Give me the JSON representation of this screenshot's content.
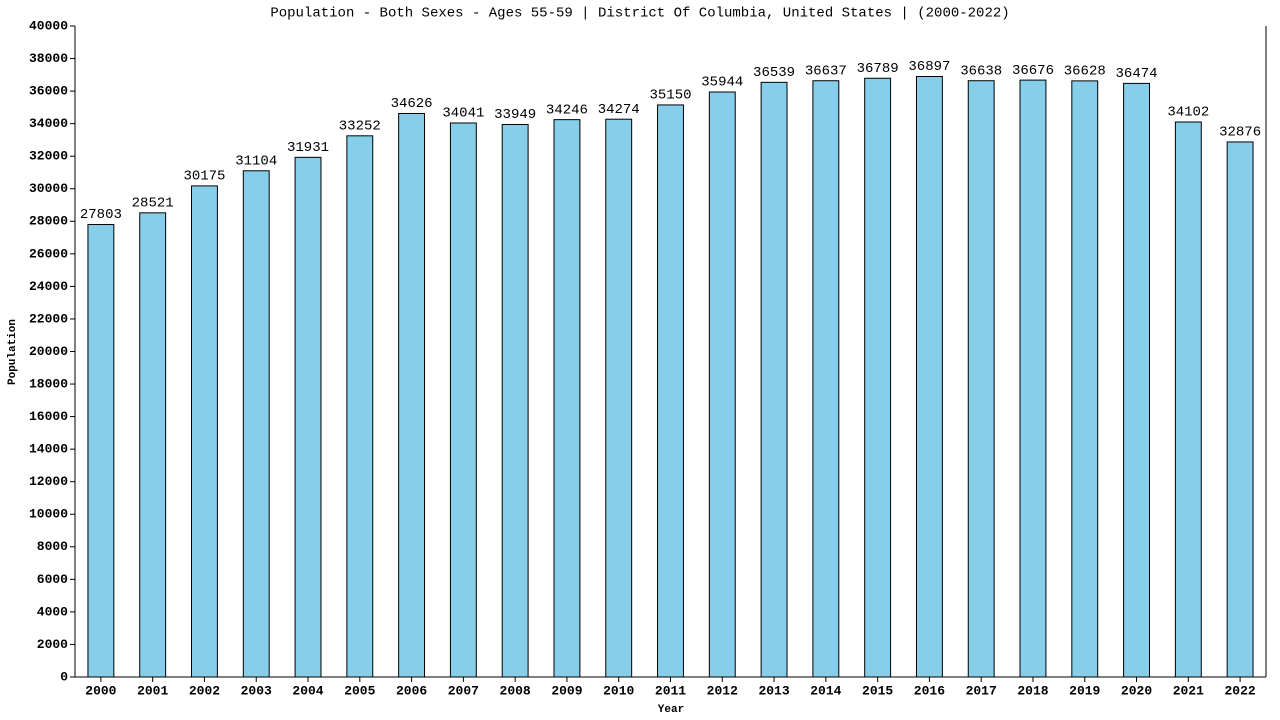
{
  "chart_data": {
    "type": "bar",
    "title": "Population - Both Sexes - Ages 55-59 | District Of Columbia, United States |  (2000-2022)",
    "x_label": "Year",
    "y_label": "Population",
    "categories": [
      "2000",
      "2001",
      "2002",
      "2003",
      "2004",
      "2005",
      "2006",
      "2007",
      "2008",
      "2009",
      "2010",
      "2011",
      "2012",
      "2013",
      "2014",
      "2015",
      "2016",
      "2017",
      "2018",
      "2019",
      "2020",
      "2021",
      "2022"
    ],
    "values": [
      27803,
      28521,
      30175,
      31104,
      31931,
      33252,
      34626,
      34041,
      33949,
      34246,
      34274,
      35150,
      35944,
      36539,
      36637,
      36789,
      36897,
      36638,
      36676,
      36628,
      36474,
      34102,
      32876
    ],
    "color": "#87ceeb",
    "ylim": [
      0,
      40000
    ],
    "yticks": [
      0,
      2000,
      4000,
      6000,
      8000,
      10000,
      12000,
      14000,
      16000,
      18000,
      20000,
      22000,
      24000,
      26000,
      28000,
      30000,
      32000,
      34000,
      36000,
      38000,
      40000
    ],
    "grid": false
  }
}
